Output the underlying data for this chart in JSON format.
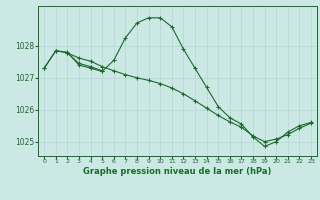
{
  "bg_color": "#cce8e4",
  "grid_color_minor": "#b0d8d4",
  "grid_color_major": "#b0c8c4",
  "line_color": "#1a6b2a",
  "title": "Graphe pression niveau de la mer (hPa)",
  "xlim": [
    -0.5,
    23.5
  ],
  "ylim": [
    1024.55,
    1029.25
  ],
  "yticks": [
    1025,
    1026,
    1027,
    1028
  ],
  "xticks": [
    0,
    1,
    2,
    3,
    4,
    5,
    6,
    7,
    8,
    9,
    10,
    11,
    12,
    13,
    14,
    15,
    16,
    17,
    18,
    19,
    20,
    21,
    22,
    23
  ],
  "line1_x": [
    0,
    1,
    2,
    3,
    4,
    5,
    6,
    7,
    8,
    9,
    10,
    11,
    12,
    13,
    14,
    15,
    16,
    17,
    18,
    19,
    20,
    21,
    22,
    23
  ],
  "line1_y": [
    1027.3,
    1027.85,
    1027.8,
    1027.4,
    1027.3,
    1027.2,
    1027.55,
    1028.25,
    1028.72,
    1028.88,
    1028.88,
    1028.6,
    1027.9,
    1027.3,
    1026.7,
    1026.1,
    1025.75,
    1025.55,
    1025.15,
    1024.85,
    1025.0,
    1025.3,
    1025.5,
    1025.6
  ],
  "line2_x": [
    0,
    1,
    2,
    3,
    4,
    5,
    6,
    7,
    8,
    9,
    10,
    11,
    12,
    13,
    14,
    15,
    16,
    17,
    18,
    19,
    20,
    21,
    22,
    23
  ],
  "line2_y": [
    1027.3,
    1027.85,
    1027.78,
    1027.62,
    1027.52,
    1027.35,
    1027.22,
    1027.1,
    1027.0,
    1026.92,
    1026.82,
    1026.68,
    1026.5,
    1026.28,
    1026.05,
    1025.82,
    1025.62,
    1025.45,
    1025.18,
    1025.0,
    1025.08,
    1025.22,
    1025.42,
    1025.58
  ],
  "line3_x": [
    2,
    3,
    4,
    5
  ],
  "line3_y": [
    1027.78,
    1027.45,
    1027.35,
    1027.22
  ]
}
